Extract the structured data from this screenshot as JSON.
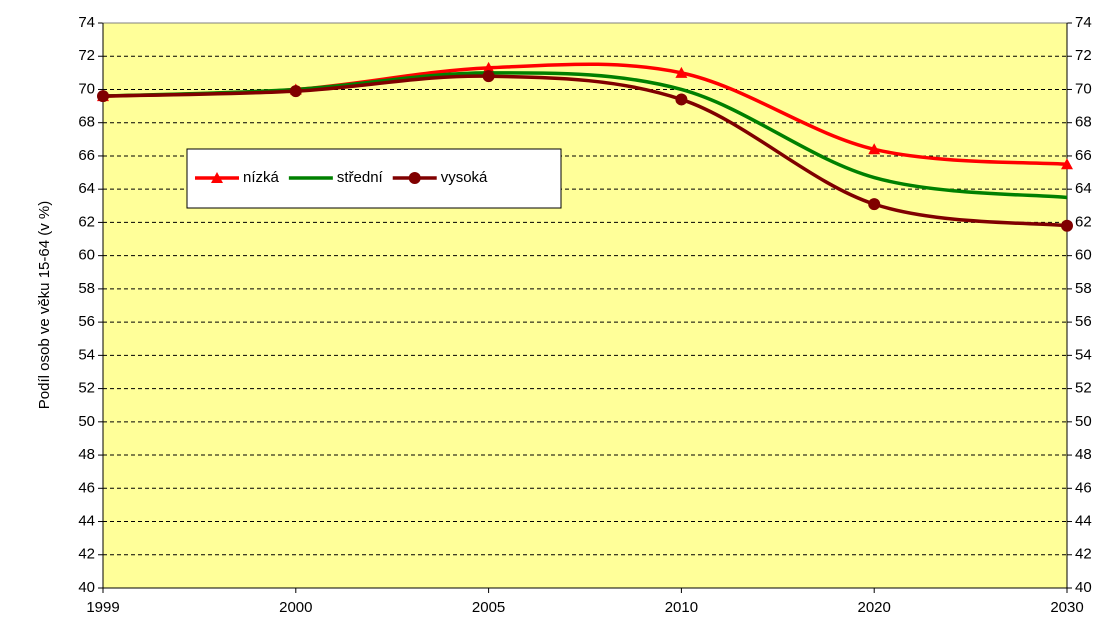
{
  "chart_data": {
    "type": "line",
    "smooth": true,
    "ylabel": "Podíl osob ve věku 15-64 (v %)",
    "categories": [
      "1999",
      "2000",
      "2005",
      "2010",
      "2020",
      "2030"
    ],
    "series": [
      {
        "name": "nízká",
        "color": "#ff0000",
        "marker": "triangle",
        "values": [
          69.6,
          70.0,
          71.3,
          71.0,
          66.4,
          65.5
        ]
      },
      {
        "name": "střední",
        "color": "#008000",
        "marker": "none",
        "values": [
          69.6,
          70.0,
          71.0,
          70.0,
          64.7,
          63.5
        ]
      },
      {
        "name": "vysoká",
        "color": "#800000",
        "marker": "circle",
        "values": [
          69.6,
          69.9,
          70.8,
          69.4,
          63.1,
          61.8
        ]
      }
    ],
    "ylim": [
      40,
      74
    ],
    "yticks": [
      40,
      42,
      44,
      46,
      48,
      50,
      52,
      54,
      56,
      58,
      60,
      62,
      64,
      66,
      68,
      70,
      72,
      74
    ],
    "y2lim": [
      40,
      74
    ],
    "y2ticks": [
      40,
      42,
      44,
      46,
      48,
      50,
      52,
      54,
      56,
      58,
      60,
      62,
      64,
      66,
      68,
      70,
      72,
      74
    ],
    "grid": true,
    "plot_background": "#ffff99"
  }
}
